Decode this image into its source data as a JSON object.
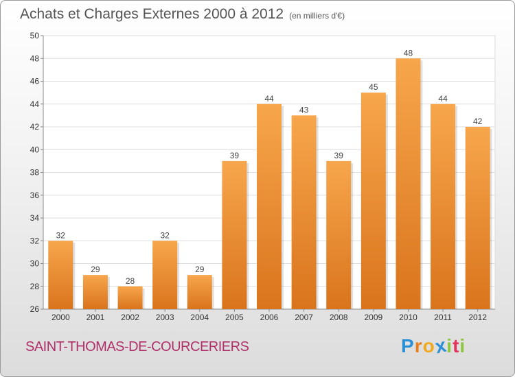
{
  "title": "Achats et Charges Externes 2000 à 2012",
  "subtitle": "(en milliers d'€)",
  "town": "SAINT-THOMAS-DE-COURCERIERS",
  "brand": {
    "letters": [
      "P",
      "r",
      "o",
      "x",
      "i",
      "t",
      "i"
    ],
    "colors": [
      "#2b8fd6",
      "#e87d1e",
      "#f0a81f",
      "#2b8fd6",
      "#8cc63f",
      "#e2345b",
      "#8cc63f"
    ]
  },
  "colors": {
    "bar_top": "#f7a64c",
    "bar_bottom": "#d9741c",
    "town": "#b0306a"
  },
  "chart_data": {
    "type": "bar",
    "categories": [
      "2000",
      "2001",
      "2002",
      "2003",
      "2004",
      "2005",
      "2006",
      "2007",
      "2008",
      "2009",
      "2010",
      "2011",
      "2012"
    ],
    "values": [
      32,
      29,
      28,
      32,
      29,
      39,
      44,
      43,
      39,
      45,
      48,
      44,
      42
    ],
    "title": "Achats et Charges Externes 2000 à 2012",
    "ylim": [
      26,
      50
    ],
    "yticks": [
      26,
      28,
      30,
      32,
      34,
      36,
      38,
      40,
      42,
      44,
      46,
      48,
      50
    ],
    "grid": true,
    "data_labels": true
  }
}
